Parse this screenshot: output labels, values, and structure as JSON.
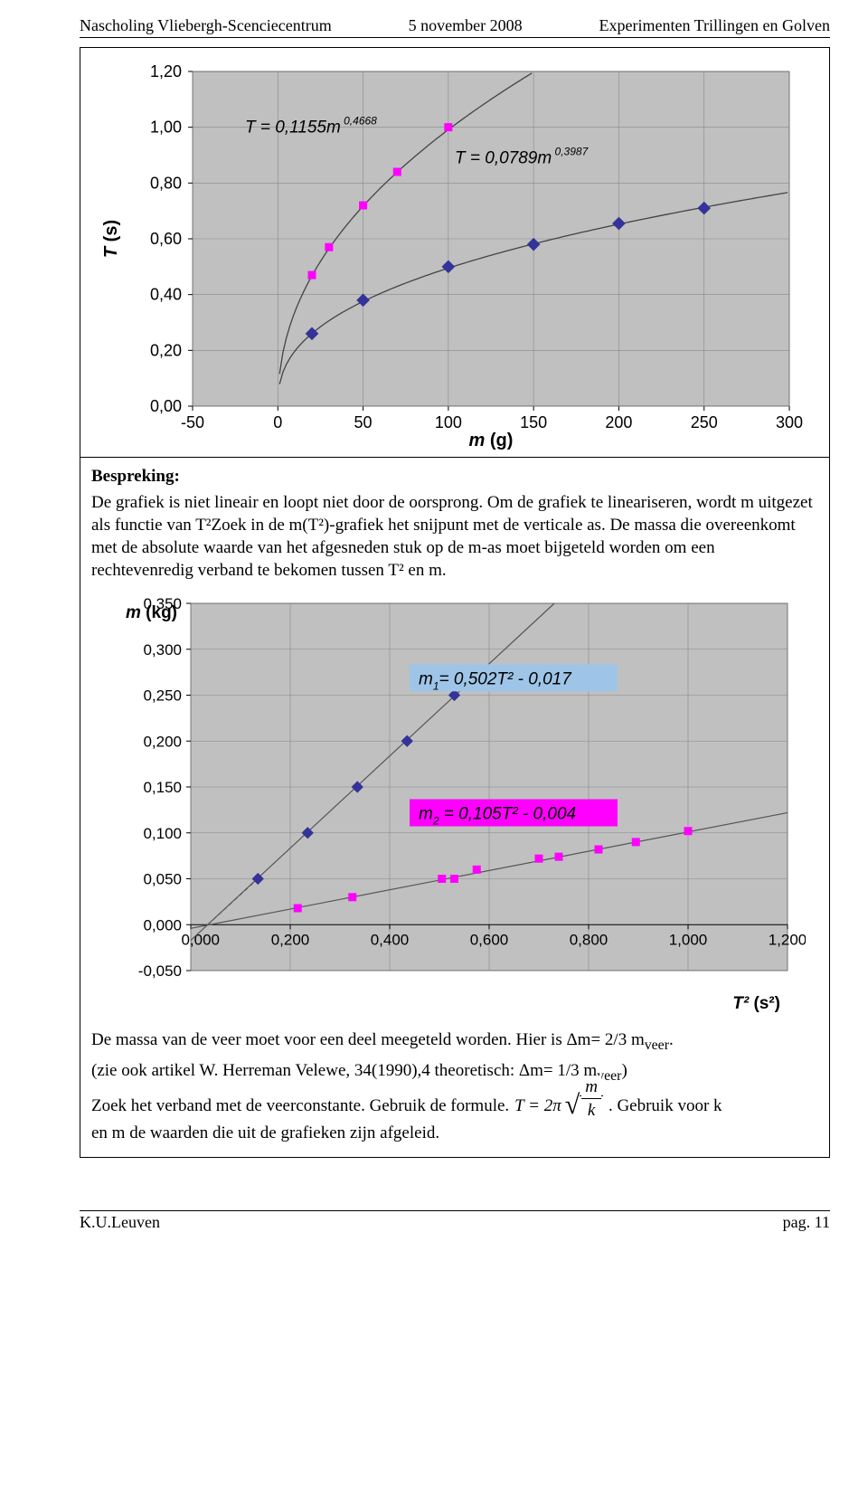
{
  "header": {
    "left": "Nascholing Vliebergh-Scenciecentrum",
    "center": "5 november 2008",
    "right": "Experimenten Trillingen en Golven"
  },
  "chart1": {
    "type": "scatter-fit",
    "plot_bg": "#c0c0c0",
    "frame_bg": "#ffffff",
    "grid_color": "#888888",
    "axis_color": "#000000",
    "tick_fontsize": 18,
    "label_fontsize": 20,
    "xlabel": "m (g)",
    "ylabel": "T (s)",
    "xlim": [
      -50,
      300
    ],
    "ylim": [
      0,
      1.2
    ],
    "xticks": [
      -50,
      0,
      50,
      100,
      150,
      200,
      250,
      300
    ],
    "yticks": [
      "0,00",
      "0,20",
      "0,40",
      "0,60",
      "0,80",
      "1,00",
      "1,20"
    ],
    "yvals": [
      0,
      0.2,
      0.4,
      0.6,
      0.8,
      1.0,
      1.2
    ],
    "series1": {
      "color": "#ff00ff",
      "marker": "square",
      "size": 9,
      "data": [
        [
          20,
          0.47
        ],
        [
          30,
          0.57
        ],
        [
          50,
          0.72
        ],
        [
          70,
          0.84
        ],
        [
          100,
          1.0
        ]
      ],
      "fit": {
        "a": 0.1155,
        "b": 0.4668
      },
      "label_parts": {
        "pre": "T = 0,1155m",
        "exp": " 0,4668"
      }
    },
    "series2": {
      "color": "#333399",
      "marker": "diamond",
      "size": 11,
      "data": [
        [
          20,
          0.26
        ],
        [
          50,
          0.38
        ],
        [
          100,
          0.5
        ],
        [
          150,
          0.58
        ],
        [
          200,
          0.655
        ],
        [
          250,
          0.71
        ]
      ],
      "fit": {
        "a": 0.0789,
        "b": 0.3987
      },
      "label_parts": {
        "pre": "T = 0,0789m",
        "exp": " 0,3987"
      }
    }
  },
  "discussion": {
    "title": "Bespreking:",
    "p1": "De grafiek is niet lineair en loopt niet door de oorsprong. Om de grafiek te lineariseren, wordt m uitgezet als functie van T²Zoek in de m(T²)-grafiek het snijpunt met de verticale as. De massa die overeenkomt met de absolute waarde van het afgesneden stuk op de m-as moet bijgeteld worden om een rechtevenredig verband te bekomen tussen T² en m.",
    "p2": "De massa van de veer moet voor een deel meegeteld worden. Hier is Δm= 2/3 m",
    "p2_sub": "veer",
    "p2_end": ".",
    "p3": " (zie ook artikel W. Herreman Velewe, 34(1990),4  theoretisch: Δm= 1/3 m",
    "p3_sub": "veer",
    "p3_end": ")",
    "p4_a": "Zoek het verband met de veerconstante. Gebruik de formule.",
    "p4_eq_lhs": "T = 2π",
    "p4_frac_num": "m",
    "p4_frac_den": "k",
    "p4_b": ". Gebruik voor k",
    "p5": "en m de waarden die uit de grafieken zijn afgeleid."
  },
  "chart2": {
    "type": "scatter-linear",
    "plot_bg": "#c0c0c0",
    "frame_bg": "#ffffff",
    "grid_color": "#888888",
    "axis_color": "#000000",
    "tick_fontsize": 17,
    "xlabel": "T² (s²)",
    "ylabel_pre": "m",
    "ylabel_post": " (kg)",
    "xlim": [
      0,
      1.2
    ],
    "ylim": [
      -0.05,
      0.35
    ],
    "xticks": [
      "0,000",
      "0,200",
      "0,400",
      "0,600",
      "0,800",
      "1,000",
      "1,200"
    ],
    "xvals": [
      0,
      0.2,
      0.4,
      0.6,
      0.8,
      1.0,
      1.2
    ],
    "yticks": [
      "-0,050",
      "0,000",
      "0,050",
      "0,100",
      "0,150",
      "0,200",
      "0,250",
      "0,300",
      "0,350"
    ],
    "yvals": [
      -0.05,
      0,
      0.05,
      0.1,
      0.15,
      0.2,
      0.25,
      0.3,
      0.35
    ],
    "series1": {
      "color": "#333399",
      "marker": "diamond",
      "fit": {
        "slope": 0.502,
        "intercept": -0.017
      },
      "data": [
        [
          0.135,
          0.05
        ],
        [
          0.235,
          0.1
        ],
        [
          0.335,
          0.15
        ],
        [
          0.435,
          0.2
        ],
        [
          0.53,
          0.25
        ]
      ],
      "label_box": {
        "bg": "#9ec5e8",
        "text_pre": "m",
        "sub": "1",
        "text_mid": "= 0,502T² - 0,017"
      }
    },
    "series2": {
      "color": "#ff00ff",
      "marker": "square",
      "fit": {
        "slope": 0.105,
        "intercept": -0.004
      },
      "data": [
        [
          0.215,
          0.018
        ],
        [
          0.325,
          0.03
        ],
        [
          0.505,
          0.05
        ],
        [
          0.53,
          0.05
        ],
        [
          0.575,
          0.06
        ],
        [
          0.7,
          0.072
        ],
        [
          0.74,
          0.074
        ],
        [
          0.82,
          0.082
        ],
        [
          0.895,
          0.09
        ],
        [
          1.0,
          0.102
        ]
      ],
      "label_box": {
        "bg": "#ff00ff",
        "text_pre": "m",
        "sub": "2",
        "text_mid": " = 0,105T² - 0,004"
      }
    }
  },
  "footer": {
    "left": "K.U.Leuven",
    "right": "pag. 11"
  }
}
